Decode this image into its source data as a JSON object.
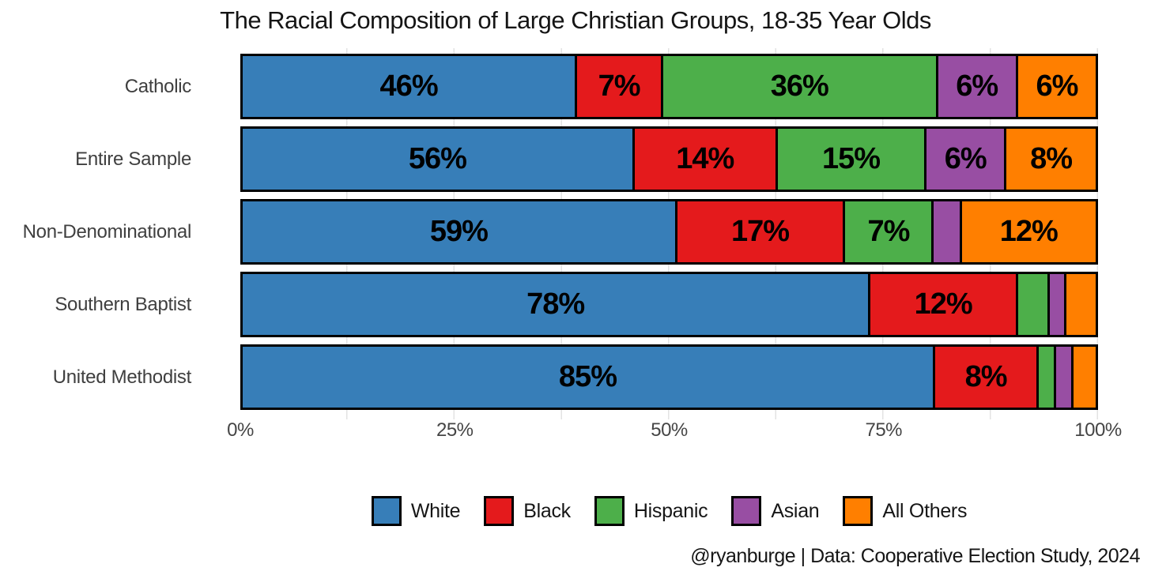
{
  "chart_data": {
    "type": "bar",
    "stacked": true,
    "orientation": "horizontal",
    "title": "The Racial Composition of Large Christian Groups, 18-35 Year Olds",
    "categories": [
      "Catholic",
      "Entire Sample",
      "Non-Denominational",
      "Southern Baptist",
      "United Methodist"
    ],
    "series": [
      {
        "name": "White",
        "color": "#377EB8",
        "values": [
          46,
          56,
          59,
          78,
          85
        ],
        "labels": [
          "46%",
          "56%",
          "59%",
          "78%",
          "85%"
        ]
      },
      {
        "name": "Black",
        "color": "#E41A1C",
        "values": [
          7,
          14,
          17,
          12,
          8
        ],
        "labels": [
          "7%",
          "14%",
          "17%",
          "12%",
          "8%"
        ]
      },
      {
        "name": "Hispanic",
        "color": "#4DAF4A",
        "values": [
          36,
          15,
          7,
          4,
          2
        ],
        "labels": [
          "36%",
          "15%",
          "7%",
          "",
          ""
        ]
      },
      {
        "name": "Asian",
        "color": "#984EA3",
        "values": [
          6,
          6,
          4,
          2,
          2
        ],
        "labels": [
          "6%",
          "6%",
          "",
          "",
          ""
        ]
      },
      {
        "name": "All Others",
        "color": "#FF7F00",
        "values": [
          6,
          8,
          12,
          4,
          3
        ],
        "labels": [
          "6%",
          "8%",
          "12%",
          "",
          ""
        ]
      }
    ],
    "x_axis": {
      "tick_labels": [
        "0%",
        "25%",
        "50%",
        "75%",
        "100%"
      ],
      "range": [
        0,
        100
      ],
      "minor_grid_step_percent": 12.5,
      "gridline_color": "#e3e3e3"
    },
    "legend": {
      "position": "bottom",
      "entries": [
        "White",
        "Black",
        "Hispanic",
        "Asian",
        "All Others"
      ]
    },
    "caption": "@ryanburge | Data: Cooperative Election Study, 2024"
  }
}
